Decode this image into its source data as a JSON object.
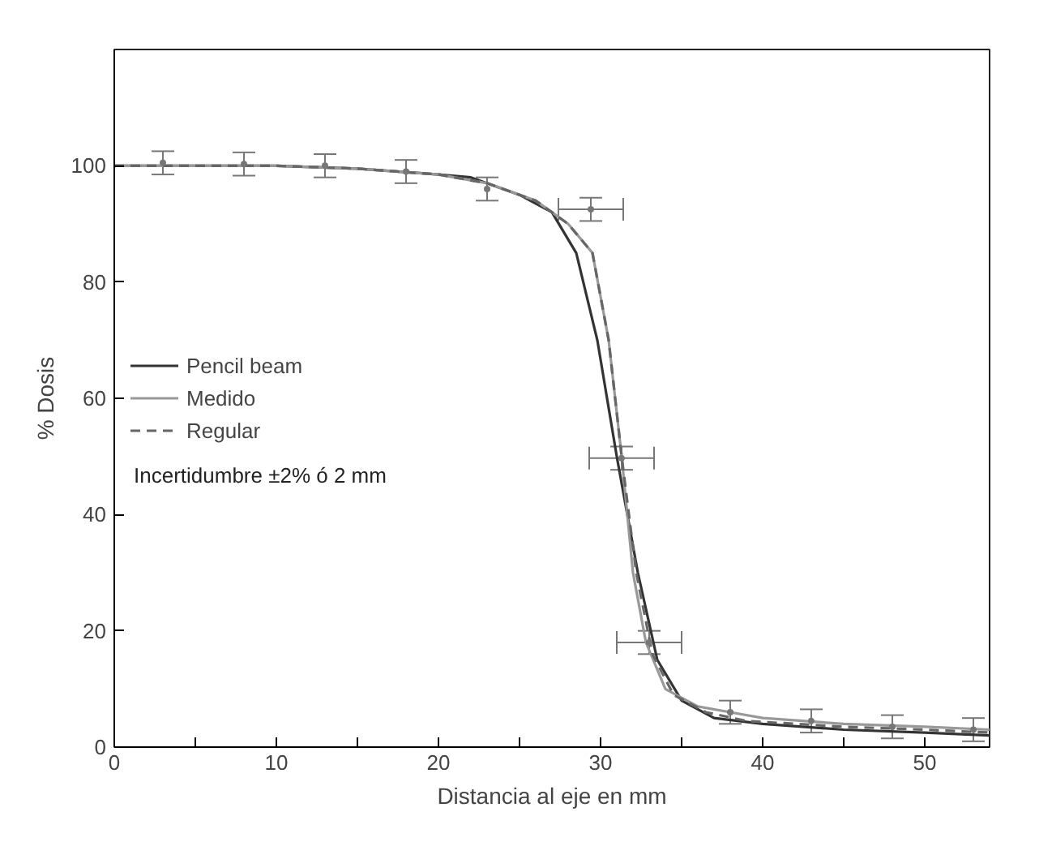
{
  "chart_data": {
    "type": "line",
    "xlabel": "Distancia al eje en mm",
    "ylabel": "% Dosis",
    "xlim": [
      0,
      54
    ],
    "ylim": [
      0,
      120
    ],
    "xticks": [
      0,
      {
        "value": 5,
        "label": null
      },
      10,
      {
        "value": 15,
        "label": null
      },
      20,
      {
        "value": 25,
        "label": null
      },
      30,
      {
        "value": 35,
        "label": null
      },
      40,
      {
        "value": 45,
        "label": null
      },
      50
    ],
    "yticks": [
      0,
      20,
      40,
      60,
      80,
      100
    ],
    "grid": false,
    "legend": "center left",
    "annotations": [
      "Incertidumbre ±2% ó 2 mm"
    ],
    "series": [
      {
        "name": "Pencil beam",
        "color": "#333333",
        "line_style": "solid",
        "x": [
          0,
          10,
          15,
          20,
          22,
          25,
          27,
          28.5,
          29.8,
          31,
          32.3,
          33.5,
          35,
          37,
          40,
          45,
          50,
          54
        ],
        "values": [
          100,
          100,
          99.5,
          98.5,
          98,
          95,
          92,
          85,
          70,
          50,
          30,
          15,
          8,
          5,
          4,
          3,
          2.5,
          2
        ]
      },
      {
        "name": "Medido",
        "color": "#999999",
        "line_style": "solid",
        "x": [
          0,
          10,
          15,
          20,
          23,
          26,
          28,
          29.5,
          30.5,
          31.3,
          32,
          32.8,
          34,
          36,
          38,
          40,
          45,
          50,
          54
        ],
        "values": [
          100,
          100,
          99.5,
          98.5,
          97,
          94,
          90,
          85,
          70,
          50,
          30,
          18,
          10,
          7,
          6,
          5,
          4,
          3.5,
          3
        ]
      },
      {
        "name": "Regular",
        "color": "#666666",
        "line_style": "dashed",
        "x": [
          0,
          10,
          15,
          20,
          23,
          26,
          28,
          29.5,
          30.5,
          31.3,
          32.2,
          33.2,
          34.5,
          36.5,
          39,
          45,
          50,
          54
        ],
        "values": [
          100,
          100,
          99.5,
          98.5,
          97,
          94,
          90,
          85,
          70,
          50,
          30,
          16,
          9,
          6,
          4.5,
          3.5,
          3,
          2.5
        ]
      },
      {
        "type": "scatter",
        "marker": "circle",
        "color": "#777777",
        "x": [
          3,
          8,
          13,
          18,
          23,
          29.4,
          31.3,
          33,
          38,
          43,
          48,
          53
        ],
        "values": [
          100.5,
          100.3,
          100,
          99,
          96,
          92.5,
          49.7,
          18,
          6,
          4.5,
          3.5,
          3
        ],
        "errors": [
          2,
          2,
          2,
          2,
          2,
          2,
          2,
          2,
          2,
          2,
          2,
          2
        ],
        "xerrors": [
          null,
          null,
          null,
          null,
          null,
          2,
          2,
          2,
          null,
          null,
          null,
          null
        ]
      }
    ]
  }
}
